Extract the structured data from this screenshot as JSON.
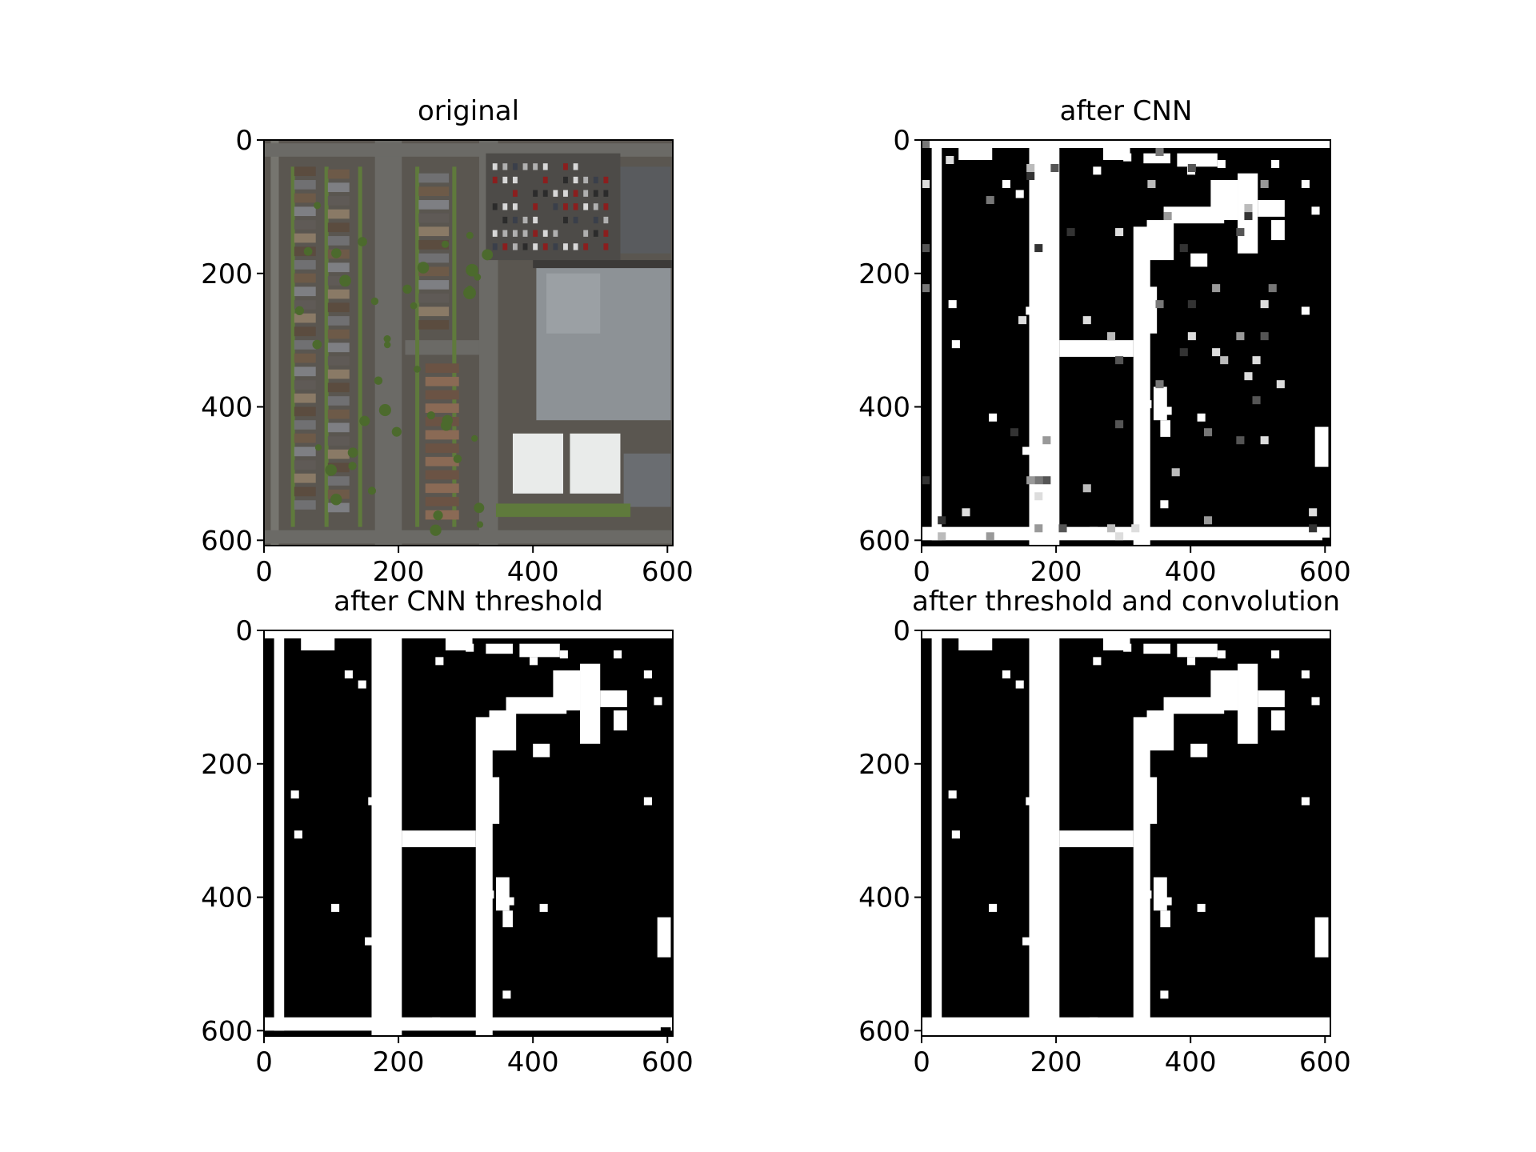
{
  "chart_data": [
    {
      "type": "heatmap",
      "variant": "photo",
      "title": "original",
      "xlabel": "",
      "ylabel": "",
      "xlim": [
        0,
        608
      ],
      "ylim": [
        608,
        0
      ],
      "xticks": [
        0,
        200,
        400,
        600
      ],
      "yticks": [
        0,
        200,
        400,
        600
      ],
      "grid": false
    },
    {
      "type": "heatmap",
      "variant": "grayscale",
      "title": "after CNN",
      "xlabel": "",
      "ylabel": "",
      "xlim": [
        0,
        608
      ],
      "ylim": [
        608,
        0
      ],
      "xticks": [
        0,
        200,
        400,
        600
      ],
      "yticks": [
        0,
        200,
        400,
        600
      ],
      "grid": false
    },
    {
      "type": "heatmap",
      "variant": "binary",
      "title": "after CNN threshold",
      "xlabel": "",
      "ylabel": "",
      "xlim": [
        0,
        608
      ],
      "ylim": [
        608,
        0
      ],
      "xticks": [
        0,
        200,
        400,
        600
      ],
      "yticks": [
        0,
        200,
        400,
        600
      ],
      "grid": false
    },
    {
      "type": "heatmap",
      "variant": "binary",
      "title": "after threshold and convolution",
      "xlabel": "",
      "ylabel": "",
      "xlim": [
        0,
        608
      ],
      "ylim": [
        608,
        0
      ],
      "xticks": [
        0,
        200,
        400,
        600
      ],
      "yticks": [
        0,
        200,
        400,
        600
      ],
      "grid": false
    }
  ],
  "colors": {
    "road": "#ffffff",
    "background": "#000000",
    "asphalt": "#5a5650",
    "street": "#6b6a66",
    "grass": "#5f7a3c",
    "roof_dark": "#5b4c3f",
    "roof_gray": "#7a7b7e",
    "building": "#8d9296",
    "flat_roof": "#e9ebea"
  }
}
